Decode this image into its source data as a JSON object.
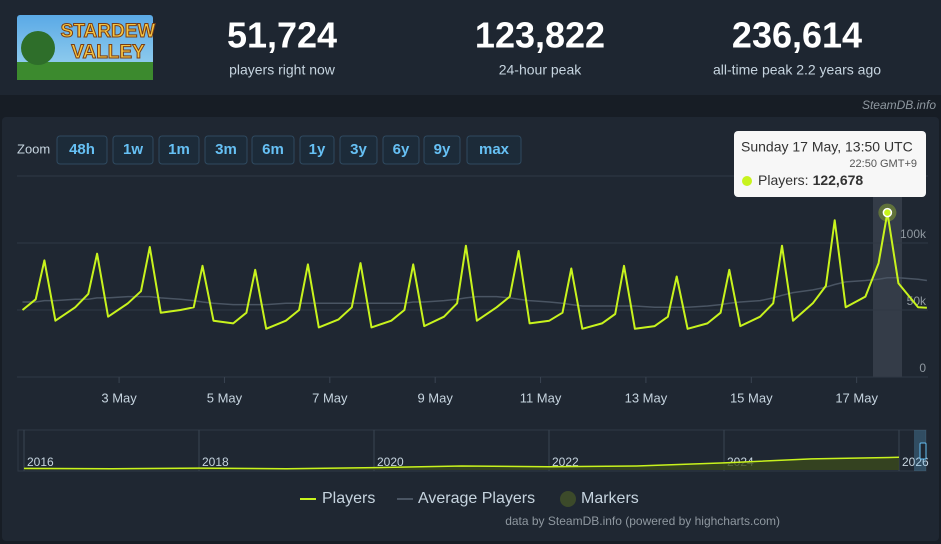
{
  "header": {
    "logo": [
      "STARDEW",
      "VALLEY"
    ],
    "stats": [
      {
        "value": "51,724",
        "label": "players right now"
      },
      {
        "value": "123,822",
        "label": "24-hour peak"
      },
      {
        "value": "236,614",
        "label": "all-time peak 2.2 years ago"
      }
    ],
    "source": "SteamDB.info"
  },
  "zoom": {
    "label": "Zoom",
    "buttons": [
      "48h",
      "1w",
      "1m",
      "3m",
      "6m",
      "1y",
      "3y",
      "6y",
      "9y",
      "max"
    ]
  },
  "chart_data": {
    "type": "line",
    "x": [
      "1 May 04:00",
      "1 May 10:00",
      "1 May 14:00",
      "1 May 19:00",
      "2 May 04:00",
      "2 May 10:00",
      "2 May 14:00",
      "2 May 19:00",
      "3 May 04:00",
      "3 May 10:00",
      "3 May 14:00",
      "3 May 19:00",
      "4 May 04:00",
      "4 May 10:00",
      "4 May 14:00",
      "4 May 19:00",
      "5 May 04:00",
      "5 May 10:00",
      "5 May 14:00",
      "5 May 19:00",
      "6 May 04:00",
      "6 May 10:00",
      "6 May 14:00",
      "6 May 19:00",
      "7 May 04:00",
      "7 May 10:00",
      "7 May 14:00",
      "7 May 19:00",
      "8 May 04:00",
      "8 May 10:00",
      "8 May 14:00",
      "8 May 19:00",
      "9 May 04:00",
      "9 May 10:00",
      "9 May 14:00",
      "9 May 19:00",
      "10 May 04:00",
      "10 May 10:00",
      "10 May 14:00",
      "10 May 19:00",
      "11 May 04:00",
      "11 May 10:00",
      "11 May 14:00",
      "11 May 19:00",
      "12 May 04:00",
      "12 May 10:00",
      "12 May 14:00",
      "12 May 19:00",
      "13 May 04:00",
      "13 May 10:00",
      "13 May 14:00",
      "13 May 19:00",
      "14 May 04:00",
      "14 May 10:00",
      "14 May 14:00",
      "14 May 19:00",
      "15 May 04:00",
      "15 May 10:00",
      "15 May 14:00",
      "15 May 19:00",
      "16 May 04:00",
      "16 May 10:00",
      "16 May 14:00",
      "16 May 19:00",
      "17 May 04:00",
      "17 May 10:00",
      "17 May 14:00",
      "17 May 19:00",
      "18 May 04:00",
      "18 May 08:00"
    ],
    "series": [
      {
        "name": "Players",
        "color": "#c8f31d",
        "values": [
          50000,
          58000,
          87000,
          42000,
          52000,
          62000,
          92000,
          45000,
          55000,
          64000,
          97000,
          48000,
          50000,
          52000,
          83000,
          42000,
          40000,
          48000,
          80000,
          36000,
          42000,
          50000,
          84000,
          37000,
          43000,
          52000,
          85000,
          37000,
          42000,
          50000,
          84000,
          38000,
          45000,
          55000,
          98000,
          42000,
          52000,
          60000,
          94000,
          40000,
          42000,
          48000,
          81000,
          36000,
          40000,
          47000,
          83000,
          36000,
          38000,
          45000,
          75000,
          36000,
          40000,
          48000,
          80000,
          38000,
          45000,
          55000,
          98000,
          42000,
          55000,
          68000,
          117000,
          52000,
          60000,
          85000,
          122678,
          70000,
          52000,
          51724
        ]
      },
      {
        "name": "Average Players",
        "color": "#4a5563",
        "values": [
          56000,
          56000,
          57000,
          57000,
          58000,
          58000,
          59000,
          59000,
          60000,
          60000,
          60000,
          59000,
          58000,
          57000,
          56000,
          55000,
          54000,
          54000,
          54000,
          54000,
          55000,
          55000,
          55000,
          55000,
          55000,
          55000,
          55000,
          55000,
          55000,
          55000,
          56000,
          56000,
          57000,
          58000,
          59000,
          60000,
          60000,
          59000,
          58000,
          57000,
          56000,
          55000,
          54000,
          53000,
          53000,
          53000,
          53000,
          53000,
          52000,
          52000,
          52000,
          52000,
          53000,
          54000,
          55000,
          56000,
          57000,
          59000,
          61000,
          63000,
          65000,
          67000,
          69000,
          71000,
          72000,
          73000,
          74000,
          74000,
          73000,
          72000
        ]
      }
    ],
    "ylim": [
      0,
      150000
    ],
    "yticks": [
      0,
      {
        "value": 50000,
        "label": "50k"
      },
      {
        "value": 100000,
        "label": "100k"
      }
    ],
    "xlim": [
      "1 May 01:30",
      "18 May 08:30"
    ],
    "xticks": [
      "3 May",
      "5 May",
      "7 May",
      "9 May",
      "11 May",
      "13 May",
      "15 May",
      "17 May"
    ],
    "grid": true,
    "markers": {
      "name": "Markers",
      "color": "#3c4a2a"
    }
  },
  "tooltip": {
    "date": "Sunday 17 May, 13:50 UTC",
    "local": "22:50 GMT+9",
    "label": "Players:",
    "value": "122,678"
  },
  "navigator": {
    "type": "area",
    "categories": [
      "2016",
      null,
      "2018",
      null,
      "2020",
      null,
      "2022",
      null,
      "2024",
      null,
      "2026"
    ],
    "values": [
      10000,
      8000,
      12000,
      8000,
      15000,
      25000,
      20000,
      25000,
      45000,
      70000,
      80000
    ],
    "ylim": [
      0,
      240000
    ],
    "color": "#c8f31d"
  },
  "credits": "data by SteamDB.info (powered by highcharts.com)"
}
